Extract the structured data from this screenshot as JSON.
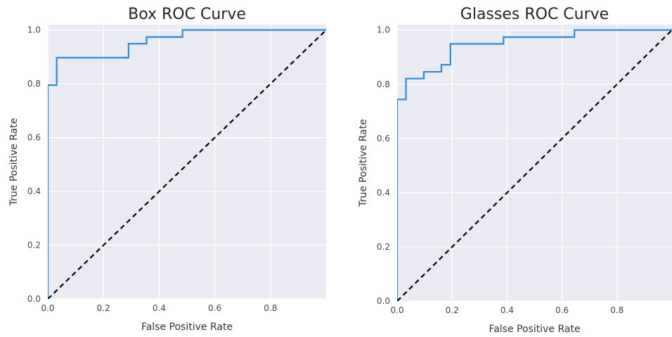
{
  "colors": {
    "plot_background": "#eaeaf2",
    "grid": "#ffffff",
    "roc_line": "#2b8cd3",
    "diagonal": "#000000"
  },
  "chart_data": [
    {
      "type": "line",
      "title": "Box ROC Curve",
      "xlabel": "False Positive Rate",
      "ylabel": "True Positive Rate",
      "xlim": [
        0,
        1
      ],
      "ylim": [
        0,
        1.02
      ],
      "grid": true,
      "xticks": [
        "0.0",
        "0.2",
        "0.4",
        "0.6",
        "0.8"
      ],
      "yticks": [
        "0.0",
        "0.2",
        "0.4",
        "0.6",
        "0.8",
        "1.0"
      ],
      "series": [
        {
          "x": [
            0.0,
            0.0,
            0.032,
            0.032,
            0.29,
            0.29,
            0.355,
            0.355,
            0.484,
            0.484,
            1.0
          ],
          "y": [
            0.0,
            0.795,
            0.795,
            0.897,
            0.897,
            0.949,
            0.949,
            0.974,
            0.974,
            1.0,
            1.0
          ],
          "style": "solid"
        },
        {
          "x": [
            0,
            1
          ],
          "y": [
            0,
            1
          ],
          "style": "dashed"
        }
      ]
    },
    {
      "type": "line",
      "title": "Glasses ROC Curve",
      "xlabel": "False Positive Rate",
      "ylabel": "True Positive Rate",
      "xlim": [
        0,
        1
      ],
      "ylim": [
        0,
        1.02
      ],
      "grid": true,
      "xticks": [
        "0.0",
        "0.2",
        "0.4",
        "0.6",
        "0.8"
      ],
      "yticks": [
        "0.0",
        "0.2",
        "0.4",
        "0.6",
        "0.8",
        "1.0"
      ],
      "series": [
        {
          "x": [
            0.0,
            0.0,
            0.032,
            0.032,
            0.097,
            0.097,
            0.161,
            0.161,
            0.194,
            0.194,
            0.387,
            0.387,
            0.645,
            0.645,
            1.0
          ],
          "y": [
            0.0,
            0.744,
            0.744,
            0.821,
            0.821,
            0.846,
            0.846,
            0.872,
            0.872,
            0.949,
            0.949,
            0.974,
            0.974,
            1.0,
            1.0
          ],
          "style": "solid"
        },
        {
          "x": [
            0,
            1
          ],
          "y": [
            0,
            1
          ],
          "style": "dashed"
        }
      ]
    }
  ]
}
